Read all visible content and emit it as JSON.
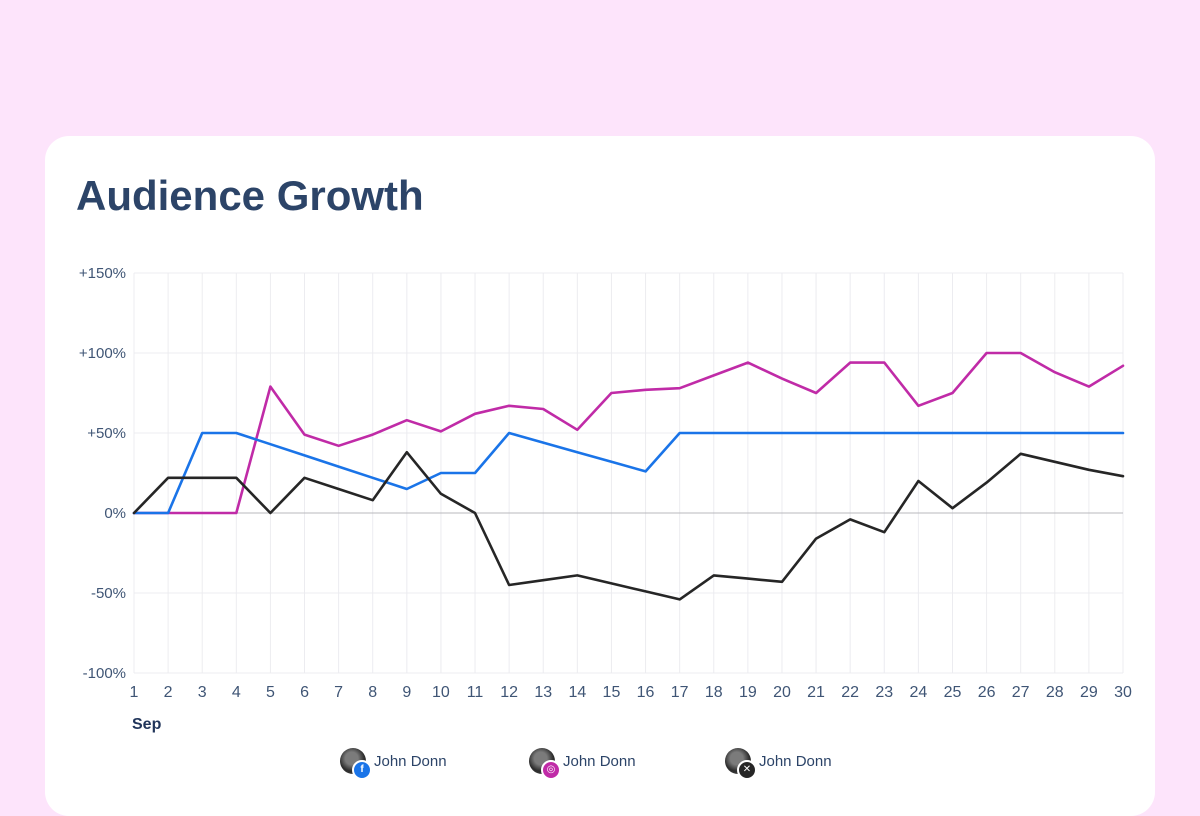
{
  "title": "Audience Growth",
  "chart_data": {
    "type": "line",
    "title": "Audience Growth",
    "x_month_label": "Sep",
    "x": [
      1,
      2,
      3,
      4,
      5,
      6,
      7,
      8,
      9,
      10,
      11,
      12,
      13,
      14,
      15,
      16,
      17,
      18,
      19,
      20,
      21,
      22,
      23,
      24,
      25,
      26,
      27,
      28,
      29,
      30
    ],
    "ylim": [
      -100,
      150
    ],
    "y_ticks": [
      150,
      100,
      50,
      0,
      -50,
      -100
    ],
    "y_tick_labels": [
      "+150%",
      "+100%",
      "+50%",
      "0%",
      "-50%",
      "-100%"
    ],
    "grid": true,
    "legend_position": "bottom",
    "series": [
      {
        "name": "John Donn",
        "network": "instagram",
        "color": "#c02ba7",
        "values": [
          0,
          0,
          0,
          0,
          79,
          49,
          42,
          49,
          58,
          51,
          62,
          67,
          65,
          52,
          75,
          77,
          78,
          86,
          94,
          84,
          75,
          94,
          94,
          67,
          75,
          100,
          100,
          88,
          79,
          92
        ]
      },
      {
        "name": "John Donn",
        "network": "facebook",
        "color": "#1a74e8",
        "values": [
          0,
          0,
          50,
          50,
          43,
          36,
          29,
          22,
          15,
          25,
          25,
          50,
          44,
          38,
          32,
          26,
          50,
          50,
          50,
          50,
          50,
          50,
          50,
          50,
          50,
          50,
          50,
          50,
          50,
          50
        ]
      },
      {
        "name": "John Donn",
        "network": "x",
        "color": "#262626",
        "values": [
          0,
          22,
          22,
          22,
          0,
          22,
          15,
          8,
          38,
          12,
          0,
          -45,
          -42,
          -39,
          -44,
          -49,
          -54,
          -39,
          -41,
          -43,
          -16,
          -4,
          -12,
          20,
          3,
          19,
          37,
          32,
          27,
          23
        ]
      }
    ]
  },
  "legend": [
    {
      "label": "John Donn",
      "icon": "facebook-icon",
      "badge": "f",
      "color": "#1a74e8"
    },
    {
      "label": "John Donn",
      "icon": "instagram-icon",
      "badge": "◎",
      "color": "#c02ba7"
    },
    {
      "label": "John Donn",
      "icon": "x-icon",
      "badge": "✕",
      "color": "#262626"
    }
  ]
}
